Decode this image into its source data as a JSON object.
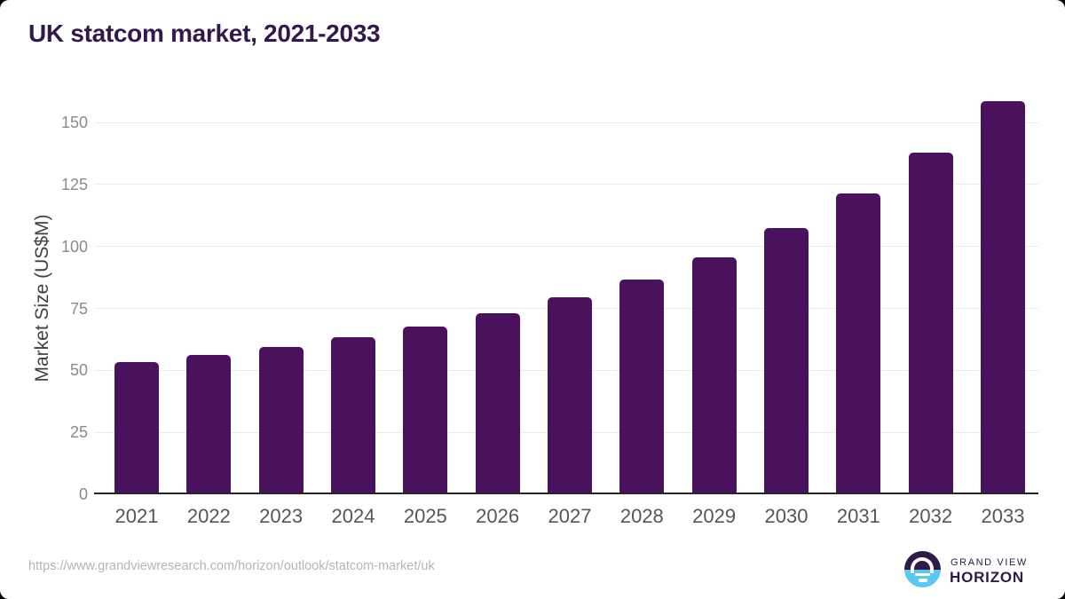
{
  "page": {
    "title": "UK statcom market, 2021-2033"
  },
  "chart_data": {
    "type": "bar",
    "title": "UK statcom market, 2021-2033",
    "categories": [
      "2021",
      "2022",
      "2023",
      "2024",
      "2025",
      "2026",
      "2027",
      "2028",
      "2029",
      "2030",
      "2031",
      "2032",
      "2033"
    ],
    "values": [
      53.4,
      56.3,
      59.6,
      63.5,
      67.8,
      73.0,
      79.4,
      86.8,
      95.7,
      107.3,
      121.2,
      138.0,
      158.5
    ],
    "xlabel": "",
    "ylabel": "Market Size (US$M)",
    "ylim": [
      0,
      160
    ],
    "yticks": [
      0,
      25,
      50,
      75,
      100,
      125,
      150
    ],
    "grid": "horizontal",
    "legend": "none",
    "bar_color": "#4a125c"
  },
  "footer": {
    "source_url": "https://www.grandviewresearch.com/horizon/outlook/statcom-market/uk",
    "logo": {
      "line1": "GRAND VIEW",
      "line2": "HORIZON"
    }
  },
  "colors": {
    "bar": "#4a125c",
    "title": "#311a4b",
    "ylabel": "#414141",
    "ytick": "#8a8a8a",
    "xtick": "#565656",
    "gridline": "#eaeaea",
    "axis_line": "#262626",
    "source_url": "#b5b5b5",
    "logo_purple": "#2e1a47",
    "logo_blue": "#5bc8f0"
  }
}
